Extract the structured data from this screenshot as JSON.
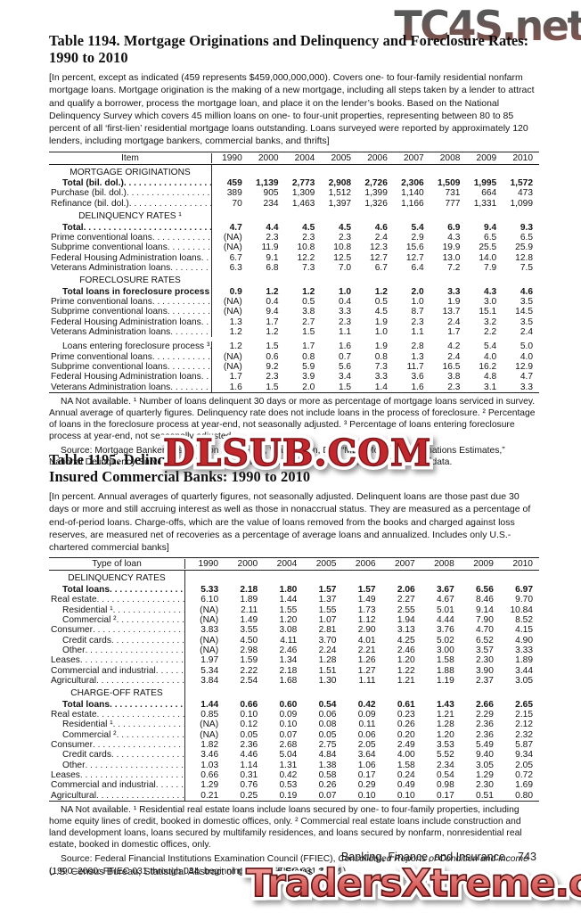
{
  "watermarks": {
    "top": "TC4S.net",
    "middle": "DLSUB.COM",
    "bottom": "TradersXtreme.com"
  },
  "table1194": {
    "title_line1": "Table 1194. Mortgage Originations and Delinquency and Foreclosure Rates:",
    "title_line2": "1990 to 2010",
    "intro": "[In percent, except as indicated (459 represents $459,000,000,000). Covers one- to four-family residential nonfarm mortgage loans. Mortgage origination is the making of a new mortgage, including all steps taken by a lender to attract and qualify a borrower, process the mortgage loan, and place it on the lender’s books. Based on the National Delinquency Survey which covers 45 million loans on one- to four-unit properties, representing between 80 to 85 percent of all ‘first-lien’ residential mortgage loans outstanding. Loans surveyed were reported by approximately 120 lenders, including mortgage bankers, commercial banks, and thrifts]",
    "item_header": "Item",
    "years": [
      "1990",
      "2000",
      "2004",
      "2005",
      "2006",
      "2007",
      "2008",
      "2009",
      "2010"
    ],
    "sections": [
      {
        "header": "MORTGAGE ORIGINATIONS",
        "rows": [
          {
            "label": "Total (bil. dol.)",
            "bold": true,
            "indent": 1,
            "values": [
              "459",
              "1,139",
              "2,773",
              "2,908",
              "2,726",
              "2,306",
              "1,509",
              "1,995",
              "1,572"
            ]
          },
          {
            "label": "Purchase (bil. dol.)",
            "values": [
              "389",
              "905",
              "1,309",
              "1,512",
              "1,399",
              "1,140",
              "731",
              "664",
              "473"
            ]
          },
          {
            "label": "Refinance (bil. dol.)",
            "values": [
              "70",
              "234",
              "1,463",
              "1,397",
              "1,326",
              "1,166",
              "777",
              "1,331",
              "1,099"
            ]
          }
        ]
      },
      {
        "header": "DELINQUENCY RATES ¹",
        "rows": [
          {
            "label": "Total",
            "bold": true,
            "indent": 1,
            "values": [
              "4.7",
              "4.4",
              "4.5",
              "4.5",
              "4.6",
              "5.4",
              "6.9",
              "9.4",
              "9.3"
            ]
          },
          {
            "label": "Prime conventional loans",
            "values": [
              "(NA)",
              "2.3",
              "2.3",
              "2.3",
              "2.4",
              "2.9",
              "4.3",
              "6.5",
              "6.5"
            ]
          },
          {
            "label": "Subprime conventional loans",
            "values": [
              "(NA)",
              "11.9",
              "10.8",
              "10.8",
              "12.3",
              "15.6",
              "19.9",
              "25.5",
              "25.9"
            ]
          },
          {
            "label": "Federal Housing Administration loans",
            "values": [
              "6.7",
              "9.1",
              "12.2",
              "12.5",
              "12.7",
              "12.7",
              "13.0",
              "14.0",
              "12.8"
            ]
          },
          {
            "label": "Veterans Administration loans",
            "values": [
              "6.3",
              "6.8",
              "7.3",
              "7.0",
              "6.7",
              "6.4",
              "7.2",
              "7.9",
              "7.5"
            ]
          }
        ]
      },
      {
        "header": "FORECLOSURE RATES",
        "rows": [
          {
            "label": "Total loans in foreclosure process ²",
            "bold": true,
            "indent": 1,
            "values": [
              "0.9",
              "1.2",
              "1.2",
              "1.0",
              "1.2",
              "2.0",
              "3.3",
              "4.3",
              "4.6"
            ]
          },
          {
            "label": "Prime conventional loans",
            "values": [
              "(NA)",
              "0.4",
              "0.5",
              "0.4",
              "0.5",
              "1.0",
              "1.9",
              "3.0",
              "3.5"
            ]
          },
          {
            "label": "Subprime conventional loans",
            "values": [
              "(NA)",
              "9.4",
              "3.8",
              "3.3",
              "4.5",
              "8.7",
              "13.7",
              "15.1",
              "14.5"
            ]
          },
          {
            "label": "Federal Housing Administration loans",
            "values": [
              "1.3",
              "1.7",
              "2.7",
              "2.3",
              "1.9",
              "2.3",
              "2.4",
              "3.2",
              "3.5"
            ]
          },
          {
            "label": "Veterans Administration loans",
            "values": [
              "1.2",
              "1.2",
              "1.5",
              "1.1",
              "1.0",
              "1.1",
              "1.7",
              "2.2",
              "2.4"
            ]
          },
          {
            "label": "Loans entering foreclosure process ³",
            "indent": 1,
            "gap": true,
            "values": [
              "1.2",
              "1.5",
              "1.7",
              "1.6",
              "1.9",
              "2.8",
              "4.2",
              "5.4",
              "5.0"
            ]
          },
          {
            "label": "Prime conventional loans",
            "values": [
              "(NA)",
              "0.6",
              "0.8",
              "0.7",
              "0.8",
              "1.3",
              "2.4",
              "4.0",
              "4.0"
            ]
          },
          {
            "label": "Subprime conventional loans",
            "values": [
              "(NA)",
              "9.2",
              "5.9",
              "5.6",
              "7.3",
              "11.7",
              "16.5",
              "16.2",
              "12.9"
            ]
          },
          {
            "label": "Federal Housing Administration loans",
            "values": [
              "1.7",
              "2.3",
              "3.9",
              "3.4",
              "3.3",
              "3.6",
              "3.8",
              "4.8",
              "4.7"
            ]
          },
          {
            "label": "Veterans Administration loans",
            "values": [
              "1.6",
              "1.5",
              "2.0",
              "1.5",
              "1.4",
              "1.6",
              "2.3",
              "3.1",
              "3.3"
            ]
          }
        ]
      }
    ],
    "footnote": "NA Not available. ¹ Number of loans delinquent 30 days or more as percentage of mortgage loans serviced in survey. Annual average of quarterly figures. Delinquency rate does not include loans in the process of foreclosure. ² Percentage of loans in the foreclosure process at year-end, not seasonally adjusted. ³ Percentage of loans entering foreclosure process at year-end, not seasonally adjusted.",
    "source": "Source: Mortgage Bankers Association of America, Washington, DC, “MBA Mortgage Originations Estimates,” National Delinquency Survey, quarterly, <http://www.mortgagebankers.org/>; and unpublished data."
  },
  "table1195": {
    "title_left": "Table 1195. Delinq",
    "title_right": "ans at",
    "title_line2": "Insured Commercial Banks: 1990 to 2010",
    "intro": "[In percent. Annual averages of quarterly figures, not seasonally adjusted. Delinquent loans are those past due 30 days or more and still accruing interest as well as those in nonaccrual status. They are measured as a percentage of end-of-period loans. Charge-offs, which are the value of loans removed from the books and charged against loss reserves, are measured net of recoveries as a percentage of average loans and annualized. Includes only U.S.-chartered commercial banks]",
    "item_header": "Type of loan",
    "years": [
      "1990",
      "2000",
      "2004",
      "2005",
      "2006",
      "2007",
      "2008",
      "2009",
      "2010"
    ],
    "sections": [
      {
        "header": "DELINQUENCY RATES",
        "rows": [
          {
            "label": "Total loans",
            "bold": true,
            "indent": 1,
            "values": [
              "5.33",
              "2.18",
              "1.80",
              "1.57",
              "1.57",
              "2.06",
              "3.67",
              "6.56",
              "6.97"
            ]
          },
          {
            "label": "Real estate",
            "values": [
              "6.10",
              "1.89",
              "1.44",
              "1.37",
              "1.49",
              "2.27",
              "4.67",
              "8.46",
              "9.70"
            ]
          },
          {
            "label": "Residential ¹",
            "indent": 1,
            "values": [
              "(NA)",
              "2.11",
              "1.55",
              "1.55",
              "1.73",
              "2.55",
              "5.01",
              "9.14",
              "10.84"
            ]
          },
          {
            "label": "Commercial ²",
            "indent": 1,
            "values": [
              "(NA)",
              "1.49",
              "1.20",
              "1.07",
              "1.12",
              "1.94",
              "4.44",
              "7.90",
              "8.52"
            ]
          },
          {
            "label": "Consumer",
            "values": [
              "3.83",
              "3.55",
              "3.08",
              "2.81",
              "2.90",
              "3.13",
              "3.76",
              "4.70",
              "4.15"
            ]
          },
          {
            "label": "Credit cards",
            "indent": 1,
            "values": [
              "(NA)",
              "4.50",
              "4.11",
              "3.70",
              "4.01",
              "4.25",
              "5.02",
              "6.52",
              "4.90"
            ]
          },
          {
            "label": "Other",
            "indent": 1,
            "values": [
              "(NA)",
              "2.98",
              "2.46",
              "2.24",
              "2.21",
              "2.46",
              "3.00",
              "3.57",
              "3.33"
            ]
          },
          {
            "label": "Leases",
            "values": [
              "1.97",
              "1.59",
              "1.34",
              "1.28",
              "1.26",
              "1.20",
              "1.58",
              "2.30",
              "1.89"
            ]
          },
          {
            "label": "Commercial and industrial",
            "values": [
              "5.34",
              "2.22",
              "2.18",
              "1.51",
              "1.27",
              "1.22",
              "1.88",
              "3.90",
              "3.44"
            ]
          },
          {
            "label": "Agricultural",
            "values": [
              "3.84",
              "2.54",
              "1.68",
              "1.30",
              "1.11",
              "1.21",
              "1.19",
              "2.37",
              "3.05"
            ]
          }
        ]
      },
      {
        "header": "CHARGE-OFF RATES",
        "rows": [
          {
            "label": "Total loans",
            "bold": true,
            "indent": 1,
            "values": [
              "1.44",
              "0.66",
              "0.60",
              "0.54",
              "0.42",
              "0.61",
              "1.43",
              "2.66",
              "2.65"
            ]
          },
          {
            "label": "Real estate",
            "values": [
              "0.85",
              "0.10",
              "0.09",
              "0.06",
              "0.09",
              "0.23",
              "1.21",
              "2.29",
              "2.15"
            ]
          },
          {
            "label": "Residential ¹",
            "indent": 1,
            "values": [
              "(NA)",
              "0.12",
              "0.10",
              "0.08",
              "0.11",
              "0.26",
              "1.28",
              "2.36",
              "2.12"
            ]
          },
          {
            "label": "Commercial ²",
            "indent": 1,
            "values": [
              "(NA)",
              "0.05",
              "0.07",
              "0.05",
              "0.06",
              "0.20",
              "1.20",
              "2.36",
              "2.32"
            ]
          },
          {
            "label": "Consumer",
            "values": [
              "1.82",
              "2.36",
              "2.68",
              "2.75",
              "2.05",
              "2.49",
              "3.53",
              "5.49",
              "5.87"
            ]
          },
          {
            "label": "Credit cards",
            "indent": 1,
            "values": [
              "3.46",
              "4.46",
              "5.04",
              "4.84",
              "3.64",
              "4.00",
              "5.52",
              "9.40",
              "9.34"
            ]
          },
          {
            "label": "Other",
            "indent": 1,
            "values": [
              "1.03",
              "1.14",
              "1.31",
              "1.38",
              "1.06",
              "1.58",
              "2.34",
              "3.05",
              "2.05"
            ]
          },
          {
            "label": "Leases",
            "values": [
              "0.66",
              "0.31",
              "0.42",
              "0.58",
              "0.17",
              "0.24",
              "0.54",
              "1.29",
              "0.72"
            ]
          },
          {
            "label": "Commercial and industrial",
            "values": [
              "1.29",
              "0.76",
              "0.53",
              "0.26",
              "0.29",
              "0.49",
              "0.98",
              "2.30",
              "1.69"
            ]
          },
          {
            "label": "Agricultural",
            "values": [
              "0.21",
              "0.25",
              "0.19",
              "0.07",
              "0.10",
              "0.10",
              "0.17",
              "0.51",
              "0.80"
            ]
          }
        ]
      }
    ],
    "footnote": "NA Not available. ¹ Residential real estate loans include loans secured by one- to four-family properties, including home equity lines of credit, booked in domestic offices, only. ² Commercial real estate loans include construction and land development loans, loans secured by multifamily residences, and loans secured by nonfarm, nonresidential real estate, booked in domestic offices, only.",
    "source_pre": "Source: Federal Financial Institutions Examination Council (FFIEC), ",
    "source_italic": "Consolidated Reports of Condition and Income",
    "source_post": " (1990–2000: FFIEC 031 through 034; beginning 2004: FFIEC 031 & 041)."
  },
  "footer": {
    "section_title": "Banking, Finance, and Insurance",
    "page_number": "743",
    "bureau_line": "U.S. Census Bureau, Statistical Abstract of the United States: 2012"
  }
}
